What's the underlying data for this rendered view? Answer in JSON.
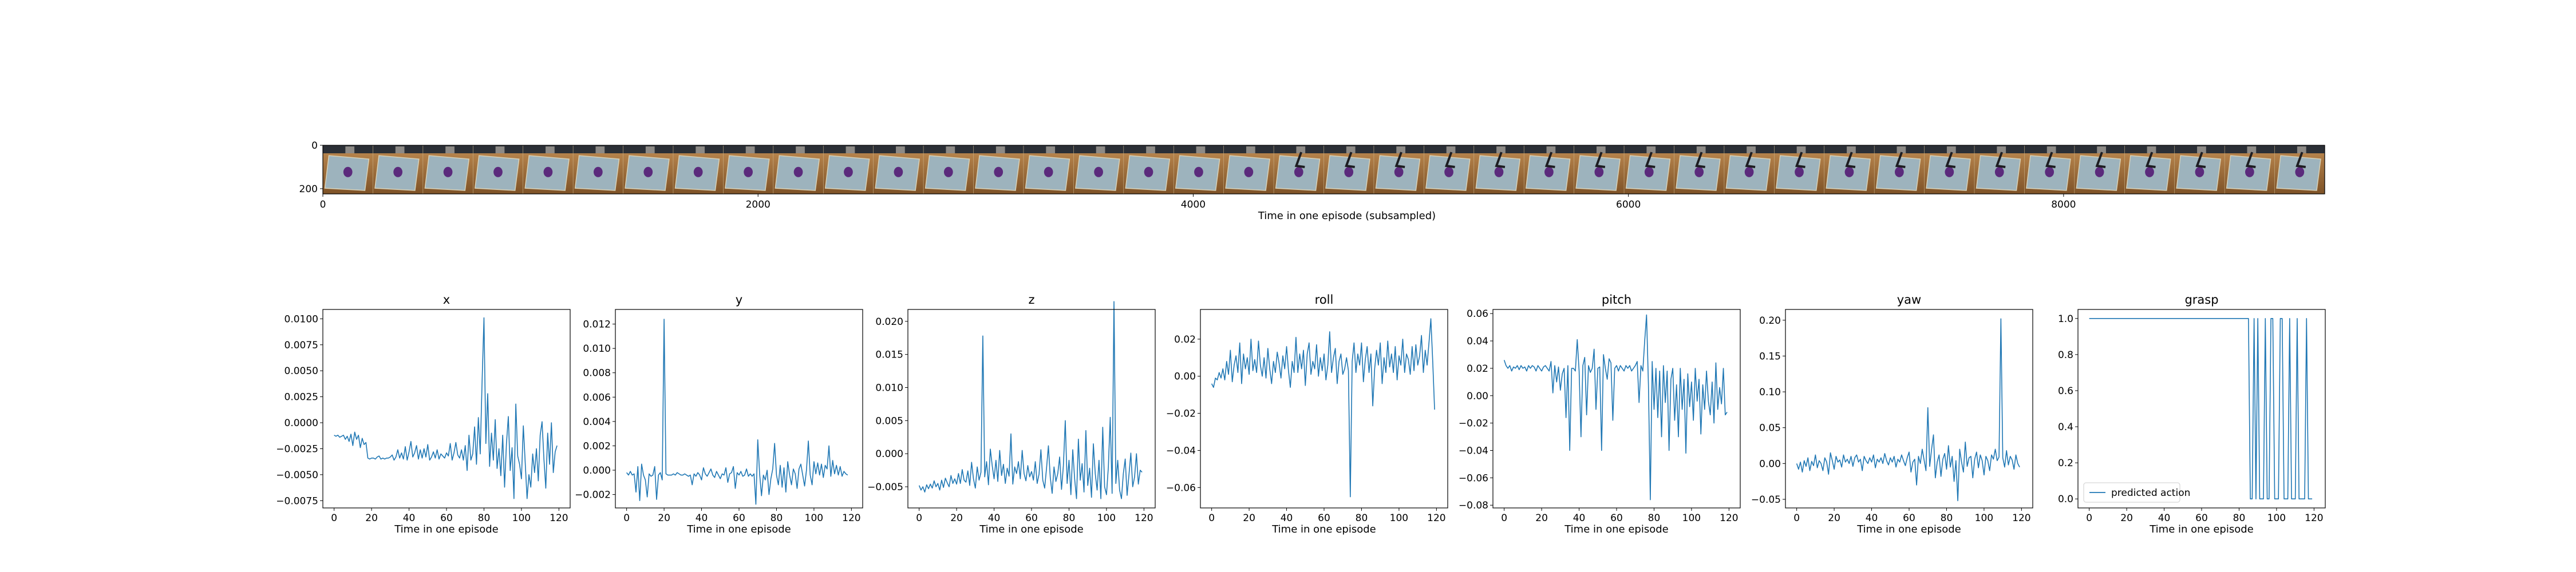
{
  "filmstrip": {
    "xlabel": "Time in one episode (subsampled)",
    "xticks": [
      0,
      2000,
      4000,
      6000,
      8000
    ],
    "yticks": [
      0,
      200
    ],
    "xlim": [
      0,
      9200
    ],
    "ylim": [
      0,
      224
    ],
    "frame_count": 40
  },
  "chart_data": [
    {
      "type": "line",
      "title": "x",
      "xlabel": "Time in one episode",
      "xlim": [
        -6,
        126
      ],
      "ylim": [
        -0.0082,
        0.0109
      ],
      "xticks": [
        0,
        20,
        40,
        60,
        80,
        100,
        120
      ],
      "yticks": [
        -0.0075,
        -0.005,
        -0.0025,
        0.0,
        0.0025,
        0.005,
        0.0075,
        0.01
      ],
      "ytick_labels": [
        "−0.0075",
        "−0.0050",
        "−0.0025",
        "0.0000",
        "0.0025",
        "0.0050",
        "0.0075",
        "0.0100"
      ],
      "color": "#1f77b4",
      "y": [
        -0.0012,
        -0.0013,
        -0.0012,
        -0.0014,
        -0.0013,
        -0.0012,
        -0.0016,
        -0.0013,
        -0.0018,
        -0.0011,
        -0.0022,
        -0.0009,
        -0.0016,
        -0.0012,
        -0.0024,
        -0.0015,
        -0.0021,
        -0.0019,
        -0.0034,
        -0.0035,
        -0.0034,
        -0.0034,
        -0.0035,
        -0.0033,
        -0.0032,
        -0.0035,
        -0.0034,
        -0.0035,
        -0.0034,
        -0.0034,
        -0.0033,
        -0.0031,
        -0.0036,
        -0.0033,
        -0.0026,
        -0.0034,
        -0.0029,
        -0.0035,
        -0.0023,
        -0.0036,
        -0.0028,
        -0.0018,
        -0.0033,
        -0.0029,
        -0.0022,
        -0.0035,
        -0.0026,
        -0.0034,
        -0.0025,
        -0.0033,
        -0.0021,
        -0.0036,
        -0.0033,
        -0.0028,
        -0.0034,
        -0.0026,
        -0.0035,
        -0.003,
        -0.0032,
        -0.0034,
        -0.0029,
        -0.0032,
        -0.002,
        -0.0036,
        -0.0029,
        -0.0019,
        -0.0031,
        -0.0034,
        -0.0026,
        -0.0036,
        -0.0022,
        -0.0046,
        -0.0012,
        -0.0036,
        -0.003,
        -0.0004,
        -0.004,
        0.0005,
        -0.003,
        0.004,
        0.0101,
        -0.002,
        0.0028,
        -0.0042,
        -0.001,
        -0.0036,
        0.0003,
        -0.0044,
        -0.0025,
        -0.0051,
        -0.0012,
        -0.0062,
        -0.002,
        0.0006,
        -0.0046,
        -0.0024,
        -0.0073,
        0.0018,
        -0.0032,
        -0.004,
        -0.0054,
        -0.0003,
        -0.0038,
        -0.0073,
        -0.005,
        -0.0062,
        -0.003,
        -0.0048,
        -0.0025,
        -0.0056,
        -0.0012,
        0.0001,
        -0.0035,
        -0.0063,
        -0.001,
        -0.004,
        0.0,
        -0.0048,
        -0.0028,
        -0.0022
      ]
    },
    {
      "type": "line",
      "title": "y",
      "xlabel": "Time in one episode",
      "xlim": [
        -6,
        126
      ],
      "ylim": [
        -0.0031,
        0.0132
      ],
      "xticks": [
        0,
        20,
        40,
        60,
        80,
        100,
        120
      ],
      "yticks": [
        -0.002,
        0.0,
        0.002,
        0.004,
        0.006,
        0.008,
        0.01,
        0.012
      ],
      "ytick_labels": [
        "−0.002",
        "0.000",
        "0.002",
        "0.004",
        "0.006",
        "0.008",
        "0.010",
        "0.012"
      ],
      "color": "#1f77b4",
      "y": [
        -0.0002,
        -0.0004,
        -0.0001,
        -0.0004,
        -0.0003,
        -0.0018,
        0.0003,
        -0.0025,
        0.0005,
        -0.0004,
        -0.0008,
        -0.0022,
        -0.0003,
        -0.0005,
        -0.0004,
        0.0003,
        -0.0024,
        -0.0004,
        -0.0002,
        -0.0008,
        0.0124,
        -0.0003,
        -0.0004,
        -0.0004,
        -0.0004,
        -0.0003,
        -0.0004,
        -0.0002,
        -0.0003,
        -0.0004,
        -0.0004,
        -0.0003,
        -0.0004,
        -0.0005,
        -0.0004,
        -0.0012,
        -0.0003,
        -0.0005,
        -0.0002,
        -0.0004,
        -0.0008,
        0.0002,
        -0.0003,
        -0.0005,
        -0.0002,
        0.0001,
        -0.0004,
        -0.0006,
        -0.0001,
        -0.0004,
        -0.0007,
        -0.0003,
        -0.0004,
        0.0002,
        -0.001,
        -0.0003,
        -0.0002,
        0.0003,
        -0.0015,
        -0.0002,
        -0.0004,
        -0.0001,
        -0.0005,
        -0.0004,
        0.0001,
        -0.0005,
        -0.0003,
        -0.0005,
        -0.0003,
        -0.0028,
        0.0025,
        -0.0003,
        -0.0021,
        -0.0004,
        -0.0008,
        0.0,
        -0.002,
        -0.0007,
        0.0001,
        0.0022,
        -0.0004,
        -0.0012,
        0.0004,
        -0.0014,
        0.0002,
        -0.0018,
        0.0007,
        -0.0004,
        -0.0012,
        0.0001,
        -0.0003,
        -0.0015,
        0.0001,
        0.0005,
        -0.0004,
        -0.0013,
        0.0,
        0.0024,
        -0.0004,
        -0.0012,
        0.0007,
        -0.0003,
        0.0006,
        -0.0004,
        0.0005,
        -0.0006,
        0.0004,
        0.0001,
        0.002,
        -0.0005,
        0.0008,
        -0.0003,
        0.0004,
        -0.0004,
        0.0003,
        -0.0005,
        -0.0001,
        -0.0003,
        -0.0004
      ]
    },
    {
      "type": "line",
      "title": "z",
      "xlabel": "Time in one episode",
      "xlim": [
        -6,
        126
      ],
      "ylim": [
        -0.0082,
        0.0218
      ],
      "xticks": [
        0,
        20,
        40,
        60,
        80,
        100,
        120
      ],
      "yticks": [
        -0.005,
        0.0,
        0.005,
        0.01,
        0.015,
        0.02
      ],
      "ytick_labels": [
        "−0.005",
        "0.000",
        "0.005",
        "0.010",
        "0.015",
        "0.020"
      ],
      "color": "#1f77b4",
      "y": [
        -0.0048,
        -0.0055,
        -0.005,
        -0.0058,
        -0.0047,
        -0.0053,
        -0.0046,
        -0.0052,
        -0.0041,
        -0.005,
        -0.0045,
        -0.0055,
        -0.004,
        -0.0051,
        -0.0037,
        -0.0044,
        -0.005,
        -0.0033,
        -0.0045,
        -0.0038,
        -0.0046,
        -0.003,
        -0.0045,
        -0.0024,
        -0.004,
        -0.0043,
        -0.0026,
        -0.0048,
        -0.0013,
        -0.0038,
        -0.0052,
        -0.002,
        -0.004,
        -0.0028,
        0.0178,
        -0.0035,
        -0.0012,
        -0.0047,
        0.0007,
        -0.0018,
        -0.0038,
        -0.001,
        -0.0042,
        0.0005,
        -0.0033,
        -0.0016,
        -0.0045,
        -0.0022,
        -0.0034,
        0.003,
        -0.0046,
        -0.002,
        -0.003,
        -0.0012,
        -0.0038,
        0.0005,
        -0.003,
        -0.0041,
        -0.0018,
        -0.0035,
        -0.0027,
        -0.004,
        -0.0012,
        -0.0045,
        -0.0031,
        0.0006,
        -0.004,
        -0.0052,
        -0.0022,
        0.0012,
        -0.0036,
        -0.006,
        -0.002,
        -0.0042,
        -0.003,
        -0.0005,
        -0.0054,
        -0.0018,
        0.005,
        -0.0045,
        -0.001,
        -0.0062,
        0.0006,
        -0.0038,
        -0.0068,
        0.0022,
        -0.004,
        -0.0015,
        -0.0058,
        0.0035,
        -0.0048,
        -0.0022,
        -0.0066,
        0.0015,
        -0.003,
        -0.0055,
        -0.001,
        -0.0068,
        0.004,
        -0.005,
        -0.0062,
        -0.002,
        0.0055,
        -0.006,
        0.023,
        -0.0045,
        -0.001,
        -0.0055,
        -0.0068,
        -0.003,
        -0.0008,
        -0.0063,
        -0.0032,
        0.0001,
        -0.005,
        -0.0035,
        0.0,
        -0.0046,
        -0.0025,
        -0.0028
      ]
    },
    {
      "type": "line",
      "title": "roll",
      "xlabel": "Time in one episode",
      "xlim": [
        -6,
        126
      ],
      "ylim": [
        -0.071,
        0.036
      ],
      "xticks": [
        0,
        20,
        40,
        60,
        80,
        100,
        120
      ],
      "yticks": [
        -0.06,
        -0.04,
        -0.02,
        0.0,
        0.02
      ],
      "ytick_labels": [
        "−0.06",
        "−0.04",
        "−0.02",
        "0.00",
        "0.02"
      ],
      "color": "#1f77b4",
      "y": [
        -0.004,
        -0.006,
        -0.001,
        -0.002,
        0.002,
        -0.001,
        0.004,
        -0.002,
        0.008,
        0.001,
        0.014,
        -0.003,
        0.006,
        0.011,
        0.002,
        0.018,
        -0.004,
        0.012,
        0.004,
        0.01,
        0.001,
        0.02,
        0.003,
        0.009,
        0.002,
        0.019,
        0.006,
        0.0,
        0.01,
        -0.001,
        0.015,
        0.004,
        -0.004,
        0.008,
        0.002,
        0.013,
        0.007,
        -0.001,
        0.011,
        0.004,
        0.016,
        0.003,
        -0.006,
        0.008,
        0.002,
        0.021,
        0.002,
        0.012,
        0.004,
        0.014,
        -0.005,
        0.012,
        0.018,
        0.001,
        0.008,
        0.004,
        0.017,
        0.0,
        0.01,
        0.003,
        0.012,
        -0.002,
        0.006,
        0.024,
        0.002,
        0.01,
        0.015,
        -0.004,
        0.008,
        0.012,
        0.001,
        0.004,
        0.01,
        0.003,
        -0.065,
        0.008,
        0.018,
        0.002,
        0.012,
        0.006,
        0.018,
        -0.003,
        0.009,
        0.016,
        0.002,
        0.012,
        -0.016,
        0.004,
        0.014,
        0.006,
        0.018,
        -0.004,
        0.01,
        0.002,
        0.019,
        0.005,
        0.012,
        0.002,
        0.016,
        -0.002,
        0.011,
        0.006,
        0.02,
        0.002,
        0.012,
        0.009,
        0.001,
        0.016,
        0.003,
        0.017,
        0.006,
        0.011,
        0.022,
        0.002,
        0.014,
        0.006,
        0.018,
        0.031,
        0.008,
        -0.018
      ]
    },
    {
      "type": "line",
      "title": "pitch",
      "xlabel": "Time in one episode",
      "xlim": [
        -6,
        126
      ],
      "ylim": [
        -0.082,
        0.063
      ],
      "xticks": [
        0,
        20,
        40,
        60,
        80,
        100,
        120
      ],
      "yticks": [
        -0.08,
        -0.06,
        -0.04,
        -0.02,
        0.0,
        0.02,
        0.04,
        0.06
      ],
      "ytick_labels": [
        "−0.08",
        "−0.06",
        "−0.04",
        "−0.02",
        "0.00",
        "0.02",
        "0.04",
        "0.06"
      ],
      "color": "#1f77b4",
      "y": [
        0.026,
        0.022,
        0.02,
        0.022,
        0.018,
        0.021,
        0.02,
        0.022,
        0.019,
        0.022,
        0.02,
        0.021,
        0.018,
        0.022,
        0.02,
        0.022,
        0.021,
        0.018,
        0.022,
        0.02,
        0.018,
        0.021,
        0.022,
        0.02,
        0.018,
        0.025,
        0.002,
        0.022,
        0.01,
        0.021,
        0.004,
        0.016,
        0.02,
        -0.016,
        0.022,
        -0.04,
        0.02,
        0.02,
        0.018,
        0.041,
        0.018,
        -0.03,
        0.022,
        0.028,
        -0.014,
        0.022,
        0.017,
        0.02,
        0.034,
        -0.01,
        0.02,
        0.021,
        -0.04,
        0.03,
        0.02,
        0.012,
        0.027,
        0.024,
        -0.018,
        0.02,
        0.022,
        0.018,
        0.022,
        0.02,
        0.018,
        0.022,
        0.02,
        0.022,
        0.018,
        0.02,
        0.022,
        0.025,
        -0.005,
        0.022,
        0.018,
        0.04,
        0.059,
        0.008,
        -0.076,
        0.025,
        -0.01,
        0.02,
        -0.016,
        0.018,
        -0.03,
        0.022,
        -0.005,
        0.018,
        -0.04,
        0.012,
        0.02,
        -0.018,
        0.008,
        -0.03,
        0.02,
        -0.01,
        0.012,
        -0.042,
        0.016,
        -0.008,
        0.01,
        -0.018,
        0.02,
        -0.004,
        0.012,
        -0.028,
        0.008,
        -0.01,
        0.018,
        -0.004,
        -0.014,
        0.01,
        -0.02,
        0.024,
        -0.01,
        0.006,
        -0.006,
        0.02,
        -0.014,
        -0.012
      ]
    },
    {
      "type": "line",
      "title": "yaw",
      "xlabel": "Time in one episode",
      "xlim": [
        -6,
        126
      ],
      "ylim": [
        -0.062,
        0.215
      ],
      "xticks": [
        0,
        20,
        40,
        60,
        80,
        100,
        120
      ],
      "yticks": [
        -0.05,
        0.0,
        0.05,
        0.1,
        0.15,
        0.2
      ],
      "ytick_labels": [
        "−0.05",
        "0.00",
        "0.05",
        "0.10",
        "0.15",
        "0.20"
      ],
      "color": "#1f77b4",
      "y": [
        0.0,
        -0.008,
        0.002,
        -0.012,
        0.004,
        -0.004,
        0.008,
        -0.01,
        0.003,
        -0.003,
        0.012,
        -0.006,
        0.004,
        0.0,
        -0.01,
        0.008,
        0.002,
        -0.015,
        0.015,
        0.004,
        -0.008,
        0.01,
        0.002,
        0.005,
        -0.005,
        0.012,
        0.002,
        0.006,
        0.0,
        0.01,
        -0.004,
        0.008,
        0.012,
        0.002,
        0.006,
        -0.01,
        0.01,
        0.004,
        0.0,
        0.008,
        0.002,
        0.012,
        -0.006,
        0.006,
        0.002,
        0.008,
        0.0,
        0.014,
        0.004,
        -0.002,
        0.008,
        0.002,
        0.01,
        -0.005,
        0.006,
        0.002,
        0.012,
        0.004,
        -0.003,
        0.008,
        0.016,
        -0.012,
        0.002,
        0.006,
        -0.03,
        0.01,
        0.0,
        0.02,
        0.005,
        -0.01,
        0.078,
        -0.004,
        0.02,
        0.04,
        -0.02,
        0.002,
        0.012,
        -0.018,
        0.006,
        0.014,
        -0.008,
        0.025,
        -0.005,
        0.01,
        -0.025,
        0.004,
        -0.052,
        0.02,
        0.002,
        -0.012,
        0.03,
        -0.004,
        0.008,
        0.01,
        -0.02,
        0.006,
        0.016,
        -0.006,
        0.012,
        0.004,
        -0.016,
        0.01,
        0.004,
        -0.01,
        0.012,
        0.006,
        0.02,
        0.004,
        0.009,
        0.202,
        0.008,
        -0.005,
        0.018,
        -0.002,
        0.01,
        0.005,
        -0.008,
        0.012,
        0.0,
        -0.005
      ]
    },
    {
      "type": "line",
      "title": "grasp",
      "xlabel": "Time in one episode",
      "xlim": [
        -6,
        126
      ],
      "ylim": [
        -0.05,
        1.05
      ],
      "xticks": [
        0,
        20,
        40,
        60,
        80,
        100,
        120
      ],
      "yticks": [
        0.0,
        0.2,
        0.4,
        0.6,
        0.8,
        1.0
      ],
      "ytick_labels": [
        "0.0",
        "0.2",
        "0.4",
        "0.6",
        "0.8",
        "1.0"
      ],
      "color": "#1f77b4",
      "legend": {
        "label": "predicted action",
        "position": "lower-left"
      },
      "y": [
        1,
        1,
        1,
        1,
        1,
        1,
        1,
        1,
        1,
        1,
        1,
        1,
        1,
        1,
        1,
        1,
        1,
        1,
        1,
        1,
        1,
        1,
        1,
        1,
        1,
        1,
        1,
        1,
        1,
        1,
        1,
        1,
        1,
        1,
        1,
        1,
        1,
        1,
        1,
        1,
        1,
        1,
        1,
        1,
        1,
        1,
        1,
        1,
        1,
        1,
        1,
        1,
        1,
        1,
        1,
        1,
        1,
        1,
        1,
        1,
        1,
        1,
        1,
        1,
        1,
        1,
        1,
        1,
        1,
        1,
        1,
        1,
        1,
        1,
        1,
        1,
        1,
        1,
        1,
        1,
        1,
        1,
        1,
        1,
        1,
        1,
        0,
        0,
        1,
        0,
        1,
        0,
        0,
        0,
        1,
        0,
        0,
        1,
        1,
        0,
        0,
        0,
        1,
        1,
        0,
        0,
        0,
        1,
        0,
        0,
        0,
        1,
        0,
        0,
        0,
        0,
        1,
        0,
        0,
        0
      ]
    }
  ]
}
